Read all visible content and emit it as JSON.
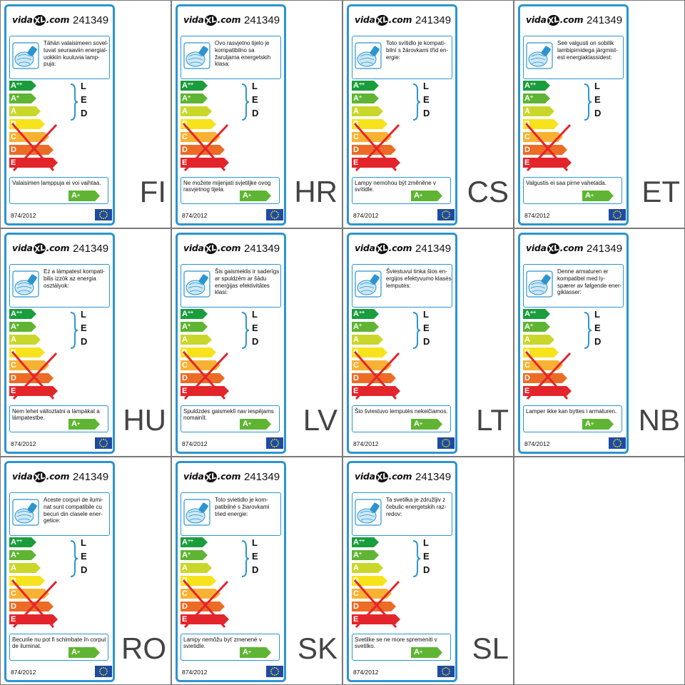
{
  "brand": {
    "prefix": "vida",
    "xl": "XL",
    "suffix": ".com"
  },
  "product_id": "241349",
  "regulation": "874/2012",
  "led_letters": [
    "L",
    "E",
    "D"
  ],
  "classes": [
    {
      "name": "A",
      "sup": "++",
      "color": "#1a9d3c"
    },
    {
      "name": "A",
      "sup": "+",
      "color": "#5fb533"
    },
    {
      "name": "A",
      "sup": "",
      "color": "#c9d72a"
    },
    {
      "name": "B",
      "sup": "",
      "color": "#f7e31c"
    },
    {
      "name": "C",
      "sup": "",
      "color": "#f8b233"
    },
    {
      "name": "D",
      "sup": "",
      "color": "#ec6b25"
    },
    {
      "name": "E",
      "sup": "",
      "color": "#e3242b"
    }
  ],
  "not_changeable_class": {
    "name": "A",
    "sup": "+"
  },
  "colors": {
    "border": "#2c95cf",
    "cross": "#e3242b",
    "eu_flag": "#1d4aa3",
    "eu_stars": "#ffe500"
  },
  "icons": {
    "bulb": "lamp-bulb-icon",
    "flag": "eu-flag-icon",
    "brace": "curly-brace-icon"
  },
  "labels": [
    {
      "code": "FI",
      "desc": "Tähän valaisimeen sovel-tuvat seuraaviin energial-uokkiin kuuluvia lamp-puja:",
      "note": "Valaisimen lamppuja ei voi vaihtaa."
    },
    {
      "code": "HR",
      "desc": "Ovo rasvjetno tijelo je kompatibilno sa žaruljama energetskih klasa:",
      "note": "Ne možete mijenjati svjetiljke ovog rasvjetnog tijela."
    },
    {
      "code": "CS",
      "desc": "Toto svítidlo je kompati-bilní s žárovkami tříd en-ergie:",
      "note": "Lampy nemohou být změněne v svítidle."
    },
    {
      "code": "ET",
      "desc": "See valgusti on sobilik lambipirnidega järgmist-est energiaklassidest:",
      "note": "Valgustis ei saa pirne vahetada."
    },
    {
      "code": "HU",
      "desc": "Ez a lámpatest kompati-bilis izzók az energia osztályok:",
      "note": "Nem lehet változtatni a lámpákat a lámpatestbe."
    },
    {
      "code": "LV",
      "desc": "Šis gaismeklis ir saderīgs ar spuldzēm ar šādu enerģijas efektivitātes klasi:",
      "note": "Spuldzdes gaismeklī nav iespējams nomainīt."
    },
    {
      "code": "LT",
      "desc": "Šviestuvui tinka šios en-ergijos efektyvumo klasės lemputės:",
      "note": "Šio šviestuvo lemputės nekeičiamos."
    },
    {
      "code": "NB",
      "desc": "Denne armaturen er kompatibel med ly-spærer av følgende ener-giklasser:",
      "note": "Lamper ikke kan byttes i armaturen."
    },
    {
      "code": "RO",
      "desc": "Aceste corpuri de ilumi-nat sunt compatibile cu becuri din clasele ener-getice:",
      "note": "Becurile nu pot fi schimbate în corpul de iluminat."
    },
    {
      "code": "SK",
      "desc": "Toto svietidlo je kom-patibilné s žiarovkami tried energie:",
      "note": "Lampy nemôžu byť zmenené v svietidle."
    },
    {
      "code": "SL",
      "desc": "Ta svetilka je združljiv z čebulic energetskih raz-redov:",
      "note": "Svetilke se ne more spremeniti v svetilko."
    }
  ]
}
